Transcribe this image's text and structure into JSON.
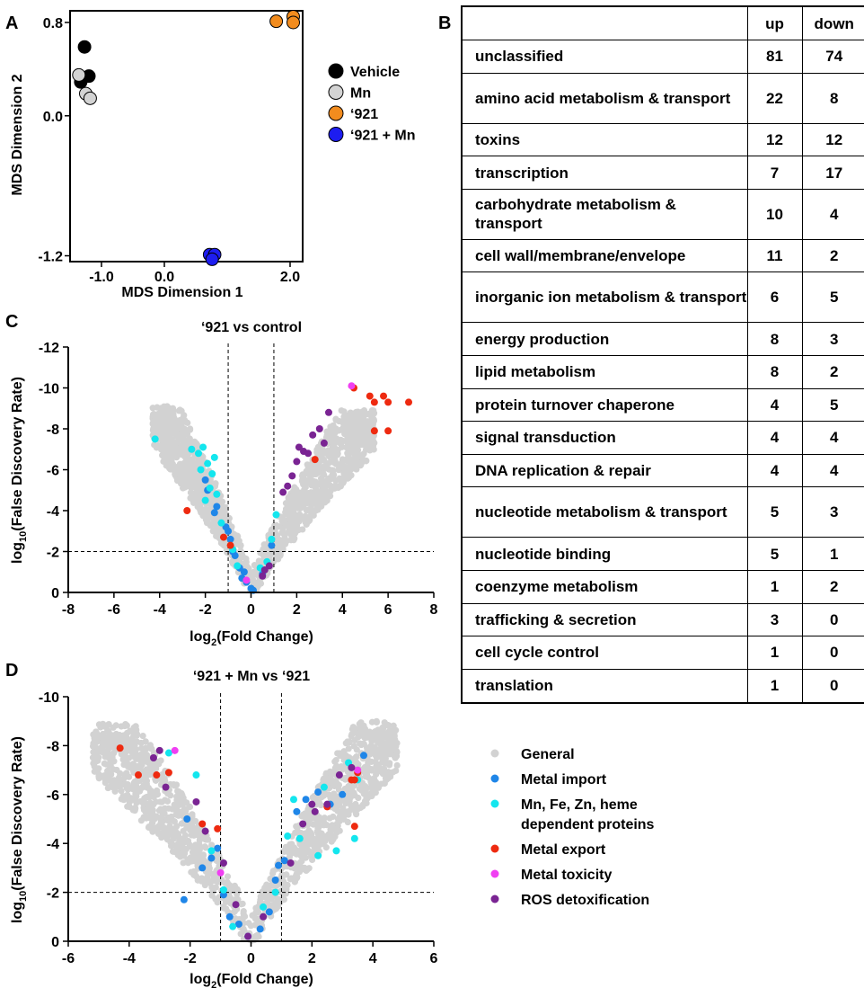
{
  "panels": {
    "a": "A",
    "b": "B",
    "c": "C",
    "d": "D"
  },
  "colors": {
    "vehicle": "#000000",
    "mn": "#d3d3d3",
    "c921": "#f28c1e",
    "c921mn": "#1d1df0",
    "general": "#d2d2d2",
    "metal_import": "#1f86e8",
    "mn_fe_zn": "#13e6ee",
    "metal_export": "#ee2a10",
    "metal_toxicity": "#f03ff2",
    "ros": "#7a2493"
  },
  "chart_data": [
    {
      "type": "scatter",
      "panel": "A",
      "xlabel": "MDS Dimension 1",
      "ylabel": "MDS Dimension 2",
      "xlim": [
        -1.5,
        2.2
      ],
      "ylim": [
        -1.25,
        0.9
      ],
      "xticks": [
        "-1.0",
        "0.0",
        "2.0"
      ],
      "yticks": [
        "0.8",
        "0.0",
        "-1.2"
      ],
      "legend_position": "right",
      "series": [
        {
          "name": "Vehicle",
          "color": "#000000",
          "x": [
            -1.27,
            -1.33,
            -1.2
          ],
          "y": [
            0.59,
            0.29,
            0.34
          ]
        },
        {
          "name": "Mn",
          "color": "#d3d3d3",
          "x": [
            -1.36,
            -1.25,
            -1.18
          ],
          "y": [
            0.35,
            0.19,
            0.15
          ]
        },
        {
          "name": "‘921",
          "color": "#f28c1e",
          "x": [
            1.78,
            2.05,
            2.05
          ],
          "y": [
            0.81,
            0.85,
            0.8
          ]
        },
        {
          "name": "‘921 + Mn",
          "color": "#1d1df0",
          "x": [
            0.72,
            0.8,
            0.76
          ],
          "y": [
            -1.19,
            -1.19,
            -1.23
          ]
        }
      ]
    },
    {
      "type": "table",
      "panel": "B",
      "columns": [
        "",
        "up",
        "down"
      ],
      "rows": [
        [
          "unclassified",
          "81",
          "74"
        ],
        [
          "amino acid metabolism & transport",
          "22",
          "8"
        ],
        [
          "toxins",
          "12",
          "12"
        ],
        [
          "transcription",
          "7",
          "17"
        ],
        [
          "carbohydrate metabolism & transport",
          "10",
          "4"
        ],
        [
          "cell wall/membrane/envelope",
          "11",
          "2"
        ],
        [
          "inorganic ion metabolism & transport",
          "6",
          "5"
        ],
        [
          "energy production",
          "8",
          "3"
        ],
        [
          "lipid metabolism",
          "8",
          "2"
        ],
        [
          "protein turnover chaperone",
          "4",
          "5"
        ],
        [
          "signal transduction",
          "4",
          "4"
        ],
        [
          "DNA replication & repair",
          "4",
          "4"
        ],
        [
          "nucleotide metabolism & transport",
          "5",
          "3"
        ],
        [
          "nucleotide binding",
          "5",
          "1"
        ],
        [
          "coenzyme metabolism",
          "1",
          "2"
        ],
        [
          "trafficking & secretion",
          "3",
          "0"
        ],
        [
          "cell cycle control",
          "1",
          "0"
        ],
        [
          "translation",
          "1",
          "0"
        ]
      ]
    },
    {
      "type": "scatter",
      "panel": "C",
      "title": "‘921 vs control",
      "xlabel_main": "log",
      "xlabel_sub": "2",
      "xlabel_rest": "(Fold Change)",
      "ylabel_main": "log",
      "ylabel_sub": "10",
      "ylabel_rest": "(False Discovery  Rate)",
      "xlim": [
        -8,
        8
      ],
      "ylim": [
        0,
        -12
      ],
      "xticks": [
        "-8",
        "-6",
        "-4",
        "-2",
        "0",
        "2",
        "4",
        "6",
        "8"
      ],
      "yticks": [
        "0",
        "-2",
        "-4",
        "-6",
        "-8",
        "-10",
        "-12"
      ],
      "thresholds": {
        "x": [
          -1,
          1
        ],
        "y": -2
      },
      "general_cloud": {
        "left_edge": [
          -4.3,
          -8.7
        ],
        "right_edge": [
          5.4,
          -8.5
        ],
        "count": 1500
      },
      "series": [
        {
          "name": "Metal import",
          "color": "#1f86e8",
          "x": [
            -1.9,
            -2.0,
            -1.5,
            -1.0,
            -0.9,
            -0.7,
            -0.5,
            -0.3,
            -0.2,
            0.1,
            0.5,
            0.9,
            -1.1,
            -1.6,
            -0.8,
            -0.4,
            0.0
          ],
          "y": [
            -5.0,
            -5.5,
            -4.2,
            -3.0,
            -2.6,
            -1.8,
            -1.2,
            -1.0,
            -0.5,
            -0.1,
            -0.9,
            -2.3,
            -3.2,
            -3.9,
            -2.0,
            -0.7,
            -0.2
          ]
        },
        {
          "name": "Mn, Fe, Zn, heme dependent proteins",
          "color": "#13e6ee",
          "x": [
            -4.2,
            -2.6,
            -2.3,
            -2.1,
            -1.9,
            -1.7,
            -2.2,
            -1.8,
            -1.5,
            -1.3,
            -0.8,
            -0.6,
            0.4,
            0.7,
            0.9,
            1.1,
            -2.0,
            -1.6
          ],
          "y": [
            -7.5,
            -7.0,
            -6.8,
            -7.1,
            -6.3,
            -5.8,
            -6.0,
            -5.1,
            -4.8,
            -3.4,
            -2.1,
            -1.3,
            -1.2,
            -1.5,
            -2.6,
            -3.8,
            -4.5,
            -6.6
          ]
        },
        {
          "name": "Metal export",
          "color": "#ee2a10",
          "x": [
            -2.8,
            -1.2,
            -0.9,
            4.5,
            5.2,
            5.4,
            5.8,
            6.0,
            6.9,
            5.4,
            6.0,
            2.8
          ],
          "y": [
            -4.0,
            -2.7,
            -2.3,
            -10.0,
            -9.6,
            -9.3,
            -9.6,
            -9.3,
            -9.3,
            -7.9,
            -7.9,
            -6.5
          ]
        },
        {
          "name": "Metal toxicity",
          "color": "#f03ff2",
          "x": [
            4.4,
            -0.2
          ],
          "y": [
            -10.1,
            -0.6
          ]
        },
        {
          "name": "ROS detoxification",
          "color": "#7a2493",
          "x": [
            0.5,
            0.8,
            1.4,
            1.8,
            2.0,
            2.3,
            2.5,
            2.7,
            3.0,
            3.2,
            3.4,
            2.1,
            1.6,
            0.6
          ],
          "y": [
            -0.8,
            -1.3,
            -4.9,
            -5.7,
            -6.4,
            -6.9,
            -6.8,
            -7.7,
            -8.0,
            -7.3,
            -8.8,
            -7.1,
            -5.2,
            -1.1
          ]
        }
      ]
    },
    {
      "type": "scatter",
      "panel": "D",
      "title": "‘921 + Mn vs ‘921",
      "xlabel_main": "log",
      "xlabel_sub": "2",
      "xlabel_rest": "(Fold Change)",
      "ylabel_main": "log",
      "ylabel_sub": "10",
      "ylabel_rest": "(False Discovery Rate)",
      "xlim": [
        -6,
        6
      ],
      "ylim": [
        0,
        -10
      ],
      "xticks": [
        "-6",
        "-4",
        "-2",
        "0",
        "2",
        "4",
        "6"
      ],
      "yticks": [
        "0",
        "-2",
        "-4",
        "-6",
        "-8",
        "-10"
      ],
      "thresholds": {
        "x": [
          -1,
          1
        ],
        "y": -2
      },
      "general_cloud": {
        "left_edge": [
          -5.2,
          -8.5
        ],
        "right_edge": [
          4.8,
          -8.6
        ],
        "count": 1500
      },
      "series": [
        {
          "name": "Metal import",
          "color": "#1f86e8",
          "x": [
            -2.2,
            -1.6,
            -1.3,
            -1.1,
            -0.9,
            -0.7,
            -0.4,
            -0.1,
            0.3,
            0.6,
            0.9,
            1.1,
            1.5,
            1.8,
            2.2,
            2.6,
            3.0,
            3.7,
            -2.1,
            0.8
          ],
          "y": [
            -1.7,
            -3.0,
            -3.4,
            -3.8,
            -1.9,
            -1.0,
            -0.7,
            -0.2,
            -0.5,
            -1.2,
            -3.1,
            -3.3,
            -5.3,
            -5.8,
            -6.1,
            -5.6,
            -6.0,
            -7.6,
            -5.0,
            -2.5
          ]
        },
        {
          "name": "Mn, Fe, Zn, heme dependent proteins",
          "color": "#13e6ee",
          "x": [
            -2.7,
            -1.8,
            -1.3,
            -0.9,
            -0.6,
            0.4,
            0.8,
            1.2,
            1.6,
            2.4,
            3.2,
            3.5,
            2.2,
            2.8,
            1.4,
            3.4
          ],
          "y": [
            -7.7,
            -6.8,
            -3.7,
            -2.1,
            -0.6,
            -1.4,
            -2.0,
            -4.3,
            -4.2,
            -6.3,
            -7.3,
            -6.6,
            -3.5,
            -3.7,
            -5.8,
            -4.2
          ]
        },
        {
          "name": "Metal export",
          "color": "#ee2a10",
          "x": [
            -4.3,
            -3.7,
            -3.1,
            -2.7,
            -1.6,
            -1.1,
            3.3,
            3.4,
            3.5,
            3.4,
            2.5
          ],
          "y": [
            -7.9,
            -6.8,
            -6.8,
            -6.9,
            -4.8,
            -4.6,
            -6.6,
            -6.6,
            -6.9,
            -4.7,
            -5.5
          ]
        },
        {
          "name": "Metal toxicity",
          "color": "#f03ff2",
          "x": [
            -2.5,
            -1.0,
            3.5
          ],
          "y": [
            -7.8,
            -2.8,
            -7.0
          ]
        },
        {
          "name": "ROS detoxification",
          "color": "#7a2493",
          "x": [
            -3.0,
            -2.8,
            -3.2,
            -1.8,
            -1.5,
            -0.9,
            -0.5,
            0.4,
            1.3,
            1.7,
            2.1,
            2.5,
            2.9,
            3.3,
            -0.1,
            2.0
          ],
          "y": [
            -7.8,
            -6.3,
            -7.5,
            -5.7,
            -4.5,
            -3.2,
            -1.5,
            -1.0,
            -3.2,
            -4.8,
            -5.3,
            -5.6,
            -6.8,
            -7.1,
            -0.2,
            -5.6
          ]
        }
      ]
    }
  ],
  "legend_bottom": [
    {
      "label": [
        "General"
      ],
      "color": "#d2d2d2"
    },
    {
      "label": [
        "Metal import"
      ],
      "color": "#1f86e8"
    },
    {
      "label": [
        "Mn, Fe, Zn, heme",
        "dependent proteins"
      ],
      "color": "#13e6ee"
    },
    {
      "label": [
        "Metal export"
      ],
      "color": "#ee2a10"
    },
    {
      "label": [
        "Metal toxicity"
      ],
      "color": "#f03ff2"
    },
    {
      "label": [
        "ROS detoxification"
      ],
      "color": "#7a2493"
    }
  ]
}
